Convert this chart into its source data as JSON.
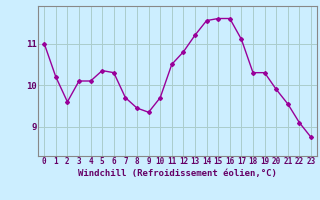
{
  "x": [
    0,
    1,
    2,
    3,
    4,
    5,
    6,
    7,
    8,
    9,
    10,
    11,
    12,
    13,
    14,
    15,
    16,
    17,
    18,
    19,
    20,
    21,
    22,
    23
  ],
  "y": [
    11.0,
    10.2,
    9.6,
    10.1,
    10.1,
    10.35,
    10.3,
    9.7,
    9.45,
    9.35,
    9.7,
    10.5,
    10.8,
    11.2,
    11.55,
    11.6,
    11.6,
    11.1,
    10.3,
    10.3,
    9.9,
    9.55,
    9.1,
    8.75
  ],
  "line_color": "#990099",
  "marker": "D",
  "marker_size": 2,
  "bg_color": "#cceeff",
  "grid_color": "#aacccc",
  "xlabel": "Windchill (Refroidissement éolien,°C)",
  "xlabel_color": "#660066",
  "xlabel_fontsize": 6.5,
  "tick_color": "#660066",
  "tick_fontsize": 5.5,
  "ytick_fontsize": 6.5,
  "yticks": [
    9,
    10,
    11
  ],
  "ylim": [
    8.3,
    11.9
  ],
  "xlim": [
    -0.5,
    23.5
  ]
}
